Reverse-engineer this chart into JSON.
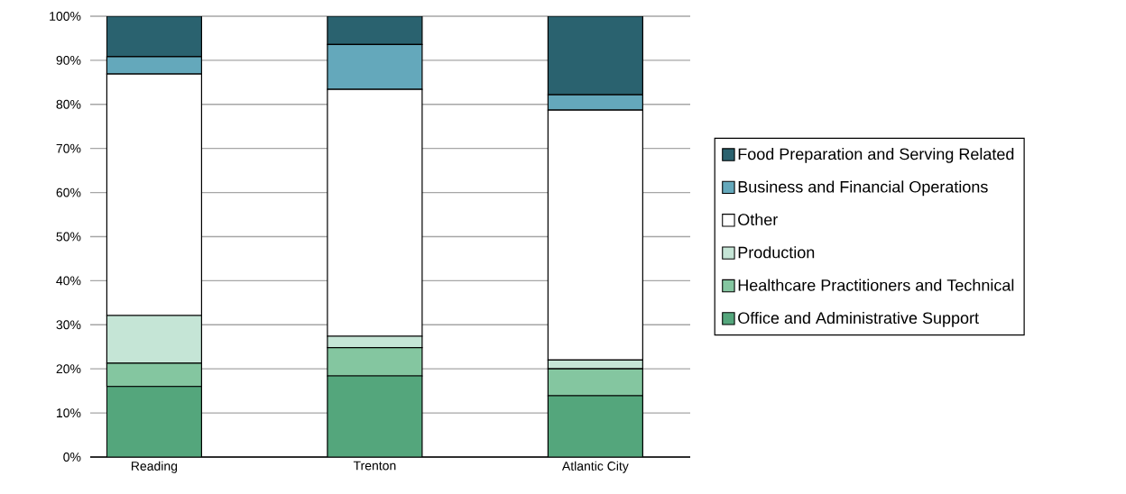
{
  "chart_data": {
    "type": "bar",
    "stacked": true,
    "categories": [
      "Reading",
      "Trenton",
      "Atlantic City"
    ],
    "series": [
      {
        "name": "Office and Administrative Support",
        "color": "#54a67c",
        "values": [
          16.0,
          18.4,
          13.9
        ]
      },
      {
        "name": "Healthcare Practitioners and Technical",
        "color": "#84c6a0",
        "values": [
          5.3,
          6.4,
          6.1
        ]
      },
      {
        "name": "Production",
        "color": "#c5e5d6",
        "values": [
          10.8,
          2.6,
          2.0
        ]
      },
      {
        "name": "Other",
        "color": "#ffffff",
        "values": [
          54.8,
          56.0,
          56.7
        ]
      },
      {
        "name": "Business and Financial Operations",
        "color": "#64a8bb",
        "values": [
          3.9,
          10.2,
          3.5
        ]
      },
      {
        "name": "Food Preparation and Serving Related",
        "color": "#2a626f",
        "values": [
          9.2,
          6.4,
          17.8
        ]
      }
    ],
    "ylim": [
      0,
      100
    ],
    "yticks": [
      {
        "value": 0,
        "label": "0%"
      },
      {
        "value": 10,
        "label": "10%"
      },
      {
        "value": 20,
        "label": "20%"
      },
      {
        "value": 30,
        "label": "30%"
      },
      {
        "value": 40,
        "label": "40%"
      },
      {
        "value": 50,
        "label": "50%"
      },
      {
        "value": 60,
        "label": "60%"
      },
      {
        "value": 70,
        "label": "70%"
      },
      {
        "value": 80,
        "label": "80%"
      },
      {
        "value": 90,
        "label": "90%"
      },
      {
        "value": 100,
        "label": "100%"
      }
    ],
    "grid": "y",
    "legend": "right"
  }
}
